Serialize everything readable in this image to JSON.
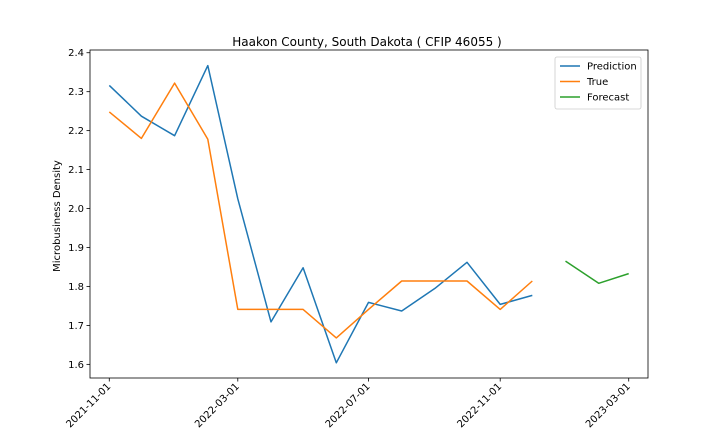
{
  "chart_data": {
    "type": "line",
    "title": "Haakon County, South Dakota ( CFIP 46055 )",
    "xlabel": "",
    "ylabel": "Microbusiness Density",
    "xlim": [
      "2021-10-14",
      "2023-03-19"
    ],
    "ylim": [
      1.565,
      2.407
    ],
    "x_ticks": [
      "2021-11-01",
      "2022-03-01",
      "2022-07-01",
      "2022-11-01",
      "2023-03-01"
    ],
    "y_ticks": [
      1.6,
      1.7,
      1.8,
      1.9,
      2.0,
      2.1,
      2.2,
      2.3,
      2.4
    ],
    "y_tick_labels": [
      "1.6",
      "1.7",
      "1.8",
      "1.9",
      "2.0",
      "2.1",
      "2.2",
      "2.3",
      "2.4"
    ],
    "grid": false,
    "legend": {
      "position": "top-right"
    },
    "series": [
      {
        "name": "Prediction",
        "color": "#1f77b4",
        "x": [
          "2021-11-01",
          "2021-12-01",
          "2022-01-01",
          "2022-02-01",
          "2022-03-01",
          "2022-04-01",
          "2022-05-01",
          "2022-06-01",
          "2022-07-01",
          "2022-08-01",
          "2022-09-01",
          "2022-10-01",
          "2022-11-01",
          "2022-12-01"
        ],
        "y": [
          2.316,
          2.237,
          2.187,
          2.367,
          2.025,
          1.709,
          1.848,
          1.604,
          1.759,
          1.737,
          1.795,
          1.862,
          1.754,
          1.777
        ]
      },
      {
        "name": "True",
        "color": "#ff7f0e",
        "x": [
          "2021-11-01",
          "2021-12-01",
          "2022-01-01",
          "2022-02-01",
          "2022-03-01",
          "2022-04-01",
          "2022-05-01",
          "2022-06-01",
          "2022-07-01",
          "2022-08-01",
          "2022-09-01",
          "2022-10-01",
          "2022-11-01",
          "2022-12-01"
        ],
        "y": [
          2.248,
          2.18,
          2.322,
          2.178,
          1.741,
          1.741,
          1.741,
          1.668,
          1.741,
          1.814,
          1.814,
          1.814,
          1.741,
          1.814
        ]
      },
      {
        "name": "Forecast",
        "color": "#2ca02c",
        "x": [
          "2023-01-01",
          "2023-02-01",
          "2023-03-01"
        ],
        "y": [
          1.865,
          1.808,
          1.833
        ]
      }
    ]
  }
}
